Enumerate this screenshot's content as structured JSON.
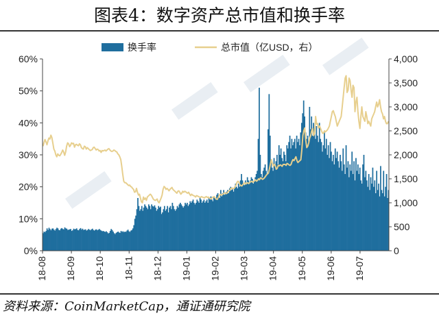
{
  "title": "图表4：数字资产总市值和换手率",
  "source": "资料来源：CoinMarketCap，通证通研究院",
  "colors": {
    "bar": "#1f6e9e",
    "line": "#e7cf8e",
    "axis": "#444444",
    "text": "#222222"
  },
  "chart_data": {
    "type": "bar+line",
    "grid": false,
    "legend_position": "top-center",
    "x_tick_labels": [
      "18-08",
      "18-09",
      "18-10",
      "18-11",
      "18-12",
      "19-01",
      "19-02",
      "19-03",
      "19-04",
      "19-05",
      "19-06",
      "19-07"
    ],
    "y_left": {
      "ticks": [
        "0%",
        "10%",
        "20%",
        "30%",
        "40%",
        "50%",
        "60%"
      ],
      "range": [
        0,
        60
      ]
    },
    "y_right": {
      "ticks": [
        "0",
        "500",
        "1,000",
        "1,500",
        "2,000",
        "2,500",
        "3,000",
        "3,500",
        "4,000"
      ],
      "range": [
        0,
        4000
      ]
    },
    "series": [
      {
        "name": "换手率",
        "type": "bar",
        "axis": "left",
        "unit": "%",
        "start": "2018-08-01",
        "values": [
          5.5,
          6,
          5.8,
          6.2,
          7,
          6.5,
          7.2,
          6.8,
          6.4,
          6.9,
          7,
          6.6,
          6.3,
          6.8,
          7.2,
          7,
          6.5,
          6.4,
          6.9,
          7.1,
          6.8,
          6.7,
          7.3,
          7,
          6.9,
          6.5,
          6.6,
          6.7,
          6.8,
          6.2,
          6.4,
          6.9,
          6.7,
          6.8,
          7,
          6.5,
          6.4,
          6.8,
          7.1,
          6.6,
          6.9,
          6.5,
          6.6,
          6.7,
          6.3,
          6.5,
          6.8,
          6.6,
          6.4,
          6.7,
          6.9,
          6.5,
          6.3,
          6.6,
          6.7,
          6.4,
          6.6,
          6.8,
          6.5,
          6.3,
          6.1,
          6.2,
          6,
          5.9,
          6.1,
          5.8,
          5.4,
          5.6,
          6.2,
          6.8,
          6.5,
          6,
          5.5,
          5.2,
          5.6,
          5.8,
          6,
          5.7,
          5.6,
          6.2,
          5.9,
          6.1,
          5.8,
          6,
          5.9,
          6.3,
          6.6,
          6.1,
          5.9,
          6.3,
          6.5,
          7,
          8,
          10,
          11,
          13,
          16.5,
          14,
          12.5,
          13,
          14,
          12.5,
          13.5,
          14.5,
          14,
          13.5,
          13,
          14.5,
          14,
          13,
          14.5,
          14,
          13.8,
          14.2,
          13.5,
          12.5,
          13,
          14,
          13.5,
          13.8,
          11.5,
          12,
          13,
          14,
          12.5,
          13,
          14,
          12,
          13.5,
          14,
          13,
          15,
          14,
          13,
          12.5,
          13,
          14,
          13.5,
          14.5,
          15,
          14.5,
          14,
          13.5,
          14,
          15,
          14.5,
          15,
          14,
          14.5,
          15.5,
          15,
          15.5,
          16,
          15,
          14.5,
          15,
          16,
          15.5,
          15,
          16.5,
          16,
          15,
          15.5,
          16,
          15,
          15.5,
          16,
          15,
          16.5,
          16,
          17,
          16,
          15.5,
          17,
          16.5,
          16,
          17.5,
          18,
          17,
          16.5,
          19,
          17,
          18,
          19,
          17.5,
          18,
          18.5,
          19,
          18,
          19.5,
          20,
          19,
          19.5,
          18.5,
          20,
          21,
          20,
          19.5,
          21,
          20,
          22,
          24,
          22,
          21,
          20.5,
          22,
          21,
          23,
          22,
          21.5,
          22,
          23,
          22.5,
          21,
          22,
          23,
          24,
          25,
          35,
          51,
          30,
          24,
          23,
          25,
          26,
          27,
          25,
          24,
          38,
          49,
          36,
          28,
          26,
          25,
          29,
          27,
          28,
          30,
          27,
          33,
          30,
          32,
          29,
          28,
          31,
          30,
          28,
          33,
          32,
          34,
          36,
          32,
          35,
          33,
          34,
          35,
          32,
          36,
          34,
          35,
          33,
          37,
          40,
          43,
          47,
          42,
          37,
          35,
          36,
          34,
          45,
          38,
          42,
          36,
          40,
          38,
          35,
          39,
          36,
          34,
          40,
          35,
          34,
          31,
          33,
          37,
          32,
          35,
          30,
          33,
          29,
          34,
          31,
          28,
          30,
          27,
          32,
          29,
          31,
          28,
          26,
          30,
          28,
          25,
          32,
          27,
          24,
          33,
          26,
          28,
          23,
          27,
          25,
          31,
          24,
          28,
          22,
          29,
          25,
          27,
          24,
          26,
          22,
          21,
          27,
          30,
          23,
          25,
          22,
          20,
          24,
          19,
          23,
          21,
          26,
          20,
          22,
          18,
          25,
          19,
          21,
          17,
          26.5,
          19,
          18,
          25,
          17,
          20,
          24,
          16.5,
          19
        ]
      },
      {
        "name": "总市值（亿USD，右）",
        "type": "line",
        "axis": "right",
        "unit": "亿USD",
        "start": "2018-08-01",
        "values": [
          2180,
          2260,
          2320,
          2270,
          2210,
          2290,
          2350,
          2330,
          2410,
          2360,
          2240,
          2120,
          2080,
          2000,
          1960,
          2020,
          1990,
          1980,
          2010,
          2050,
          2100,
          2060,
          1990,
          2060,
          2180,
          2250,
          2230,
          2170,
          2200,
          2250,
          2230,
          2240,
          2160,
          2210,
          2220,
          2200,
          2190,
          2230,
          2210,
          2150,
          2130,
          2120,
          2180,
          2170,
          2120,
          2150,
          2130,
          2110,
          2090,
          2100,
          2110,
          2150,
          2160,
          2130,
          2100,
          2120,
          2110,
          2080,
          2090,
          2050,
          2090,
          2080,
          2090,
          2100,
          2080,
          2100,
          2120,
          2130,
          2100,
          2080,
          2070,
          2080,
          2100,
          2090,
          2070,
          2060,
          2020,
          2000,
          1960,
          1900,
          1760,
          1600,
          1450,
          1420,
          1420,
          1400,
          1380,
          1360,
          1370,
          1340,
          1330,
          1300,
          1280,
          1220,
          1230,
          1300,
          1220,
          1160,
          1180,
          1100,
          1020,
          1000,
          1120,
          1070,
          1100,
          1050,
          1120,
          1140,
          1160,
          1180,
          1160,
          1120,
          1080,
          1060,
          1050,
          1060,
          1080,
          1020,
          1000,
          1050,
          1100,
          1160,
          1280,
          1340,
          1320,
          1280,
          1300,
          1280,
          1250,
          1280,
          1300,
          1320,
          1280,
          1260,
          1240,
          1220,
          1200,
          1240,
          1250,
          1220,
          1180,
          1200,
          1240,
          1220,
          1240,
          1230,
          1210,
          1200,
          1220,
          1180,
          1150,
          1180,
          1160,
          1150,
          1140,
          1120,
          1150,
          1140,
          1130,
          1120,
          1110,
          1130,
          1120,
          1110,
          1100,
          1120,
          1130,
          1110,
          1120,
          1100,
          1090,
          1080,
          1110,
          1120,
          1130,
          1100,
          1080,
          1070,
          1110,
          1150,
          1180,
          1160,
          1170,
          1180,
          1200,
          1210,
          1190,
          1200,
          1230,
          1250,
          1260,
          1300,
          1310,
          1290,
          1300,
          1320,
          1360,
          1420,
          1450,
          1430,
          1380,
          1360,
          1350,
          1380,
          1400,
          1420,
          1390,
          1410,
          1420,
          1400,
          1420,
          1440,
          1450,
          1430,
          1440,
          1460,
          1480,
          1450,
          1470,
          1500,
          1480,
          1520,
          1510,
          1490,
          1500,
          1520,
          1550,
          1580,
          1600,
          1620,
          1700,
          1800,
          1900,
          1830,
          1760,
          1800,
          1780,
          1700,
          1720,
          1780,
          1770,
          1790,
          1780,
          1760,
          1800,
          1800,
          1800,
          1780,
          1820,
          1810,
          1790,
          1780,
          1800,
          1860,
          1900,
          1880,
          1920,
          1960,
          1880,
          1840,
          1860,
          1880,
          1900,
          2100,
          2400,
          2500,
          2560,
          2300,
          2150,
          2180,
          2250,
          2350,
          2400,
          2500,
          2550,
          2400,
          2450,
          2800,
          2640,
          2650,
          2560,
          2600,
          2550,
          2500,
          2450,
          2450,
          2500,
          2480,
          2500,
          2520,
          2560,
          2600,
          2700,
          2800,
          2900,
          2920,
          2850,
          2800,
          2700,
          2600,
          2650,
          2700,
          2750,
          2800,
          3000,
          3200,
          3400,
          3600,
          3650,
          3300,
          3350,
          3600,
          3550,
          3350,
          3200,
          3450,
          3400,
          2900,
          3100,
          3200,
          2900,
          2700,
          2550,
          2800,
          3000,
          2800,
          2750,
          2700,
          2900,
          2800,
          2650,
          2700,
          2650,
          2600,
          2750,
          2800,
          2850,
          2900,
          3000,
          3100,
          3000,
          3050,
          3150,
          3000,
          2900,
          2850,
          2750,
          2800,
          2700,
          2650,
          2650,
          2700
        ]
      }
    ]
  }
}
